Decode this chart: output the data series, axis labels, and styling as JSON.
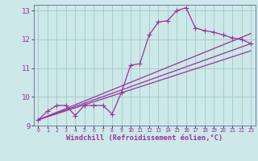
{
  "background_color": "#cce8e8",
  "grid_color": "#aacccc",
  "line_color": "#993399",
  "spine_color": "#7777aa",
  "xlabel": "Windchill (Refroidissement éolien,°C)",
  "xlim": [
    -0.5,
    23.5
  ],
  "ylim": [
    9,
    13.2
  ],
  "yticks": [
    9,
    10,
    11,
    12,
    13
  ],
  "xticks": [
    0,
    1,
    2,
    3,
    4,
    5,
    6,
    7,
    8,
    9,
    10,
    11,
    12,
    13,
    14,
    15,
    16,
    17,
    18,
    19,
    20,
    21,
    22,
    23
  ],
  "line1_x": [
    0,
    1,
    2,
    3,
    4,
    5,
    6,
    7,
    8,
    9,
    10,
    11,
    12,
    13,
    14,
    15,
    16,
    17,
    18,
    19,
    20,
    21,
    22,
    23
  ],
  "line1_y": [
    9.2,
    9.5,
    9.7,
    9.7,
    9.35,
    9.7,
    9.7,
    9.7,
    9.4,
    10.15,
    11.1,
    11.15,
    12.15,
    12.6,
    12.65,
    13.0,
    13.1,
    12.4,
    12.3,
    12.25,
    12.15,
    12.05,
    12.0,
    11.85
  ],
  "line2_x": [
    0,
    23
  ],
  "line2_y": [
    9.2,
    12.2
  ],
  "line3_x": [
    0,
    23
  ],
  "line3_y": [
    9.2,
    11.85
  ],
  "line4_x": [
    0,
    23
  ],
  "line4_y": [
    9.2,
    11.6
  ]
}
